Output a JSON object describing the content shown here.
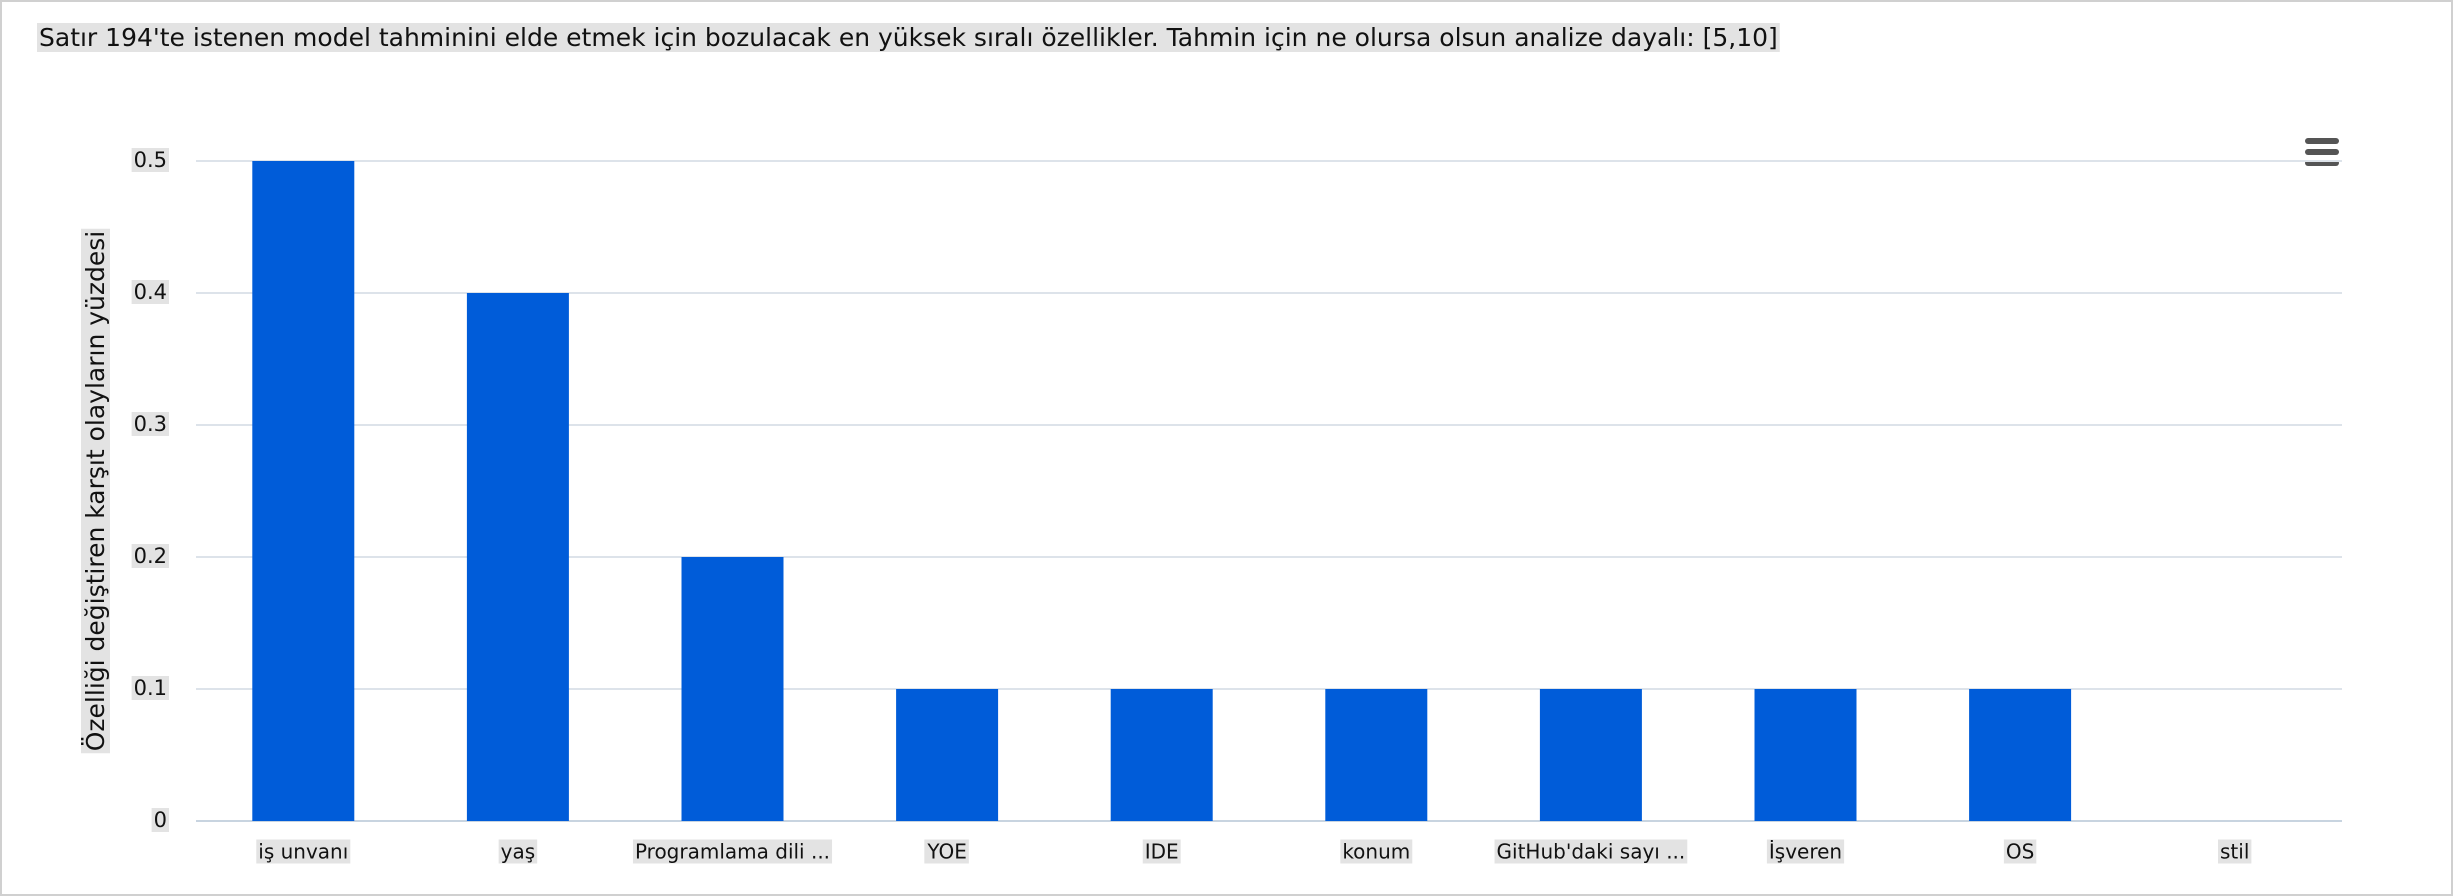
{
  "chart_data": {
    "type": "bar",
    "title": "Satır 194'te istenen model tahminini elde etmek için bozulacak en yüksek sıralı özellikler. Tahmin için ne olursa olsun analize dayalı: [5,10]",
    "y_label": "Özelliği değiştiren karşıt olayların yüzdesi",
    "categories": [
      "iş unvanı",
      "yaş",
      "Programlama dili ...",
      "YOE",
      "IDE",
      "konum",
      "GitHub'daki sayı ...",
      "İşveren",
      "OS",
      "stil"
    ],
    "values": [
      0.5,
      0.4,
      0.2,
      0.1,
      0.1,
      0.1,
      0.1,
      0.1,
      0.1,
      0
    ],
    "color": "#005cd9",
    "ylim": [
      0,
      0.5
    ],
    "yticks": [
      0,
      0.1,
      0.2,
      0.3,
      0.4,
      0.5
    ],
    "grid": true
  }
}
